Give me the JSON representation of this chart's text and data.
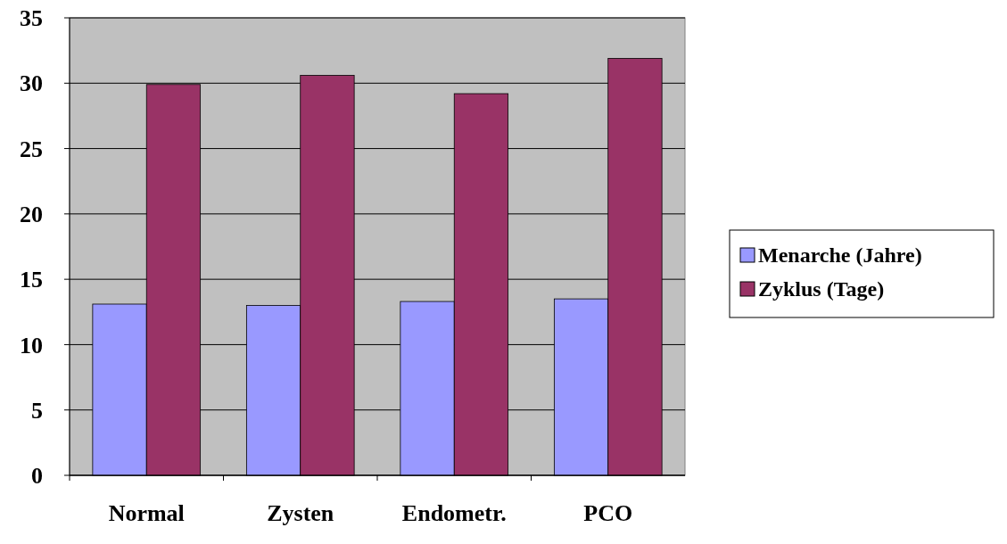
{
  "chart_data": {
    "type": "bar",
    "categories": [
      "Normal",
      "Zysten",
      "Endometr.",
      "PCO"
    ],
    "series": [
      {
        "name": "Menarche (Jahre)",
        "color": "#9999ff",
        "values": [
          13.1,
          13.0,
          13.3,
          13.5
        ]
      },
      {
        "name": "Zyklus (Tage)",
        "color": "#993366",
        "values": [
          29.9,
          30.6,
          29.2,
          31.9
        ]
      }
    ],
    "ylim": [
      0,
      35
    ],
    "yticks": [
      0,
      5,
      10,
      15,
      20,
      25,
      30,
      35
    ],
    "grid": "y",
    "legend": "right"
  }
}
